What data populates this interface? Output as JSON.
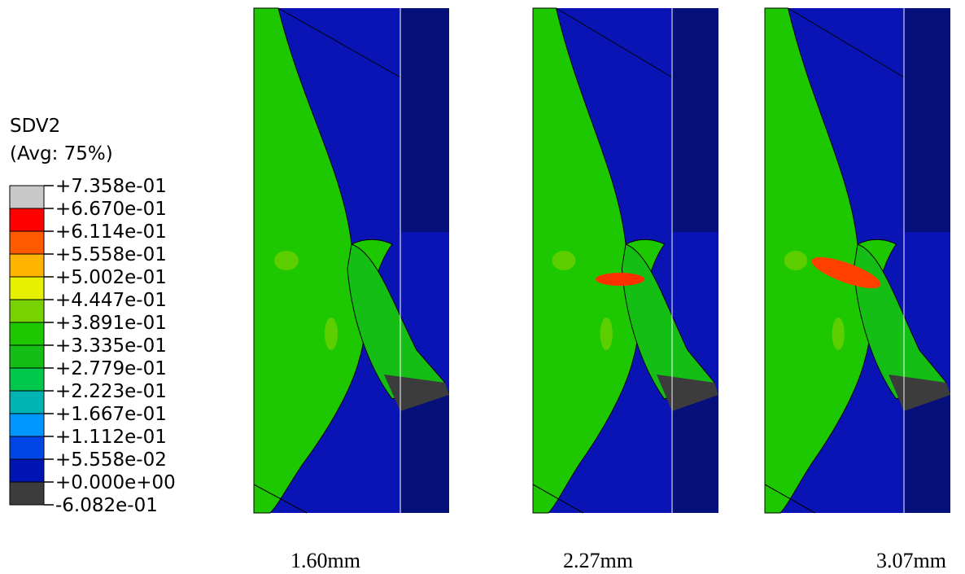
{
  "legend": {
    "title": "SDV2",
    "subtitle": "(Avg: 75%)",
    "labels": [
      "+7.358e-01",
      "+6.670e-01",
      "+6.114e-01",
      "+5.558e-01",
      "+5.002e-01",
      "+4.447e-01",
      "+3.891e-01",
      "+3.335e-01",
      "+2.779e-01",
      "+2.223e-01",
      "+1.667e-01",
      "+1.112e-01",
      "+5.558e-02",
      "+0.000e+00",
      "-6.082e-01"
    ],
    "colors": [
      "#c8c8c8",
      "#ff0000",
      "#ff5a00",
      "#ffb400",
      "#e6f000",
      "#78d200",
      "#1ec800",
      "#14be14",
      "#00c84b",
      "#00b4b4",
      "#0096ff",
      "#0046e6",
      "#0014b4",
      "#3c3c3c"
    ]
  },
  "panels": [
    {
      "caption": "1.60mm"
    },
    {
      "caption": "2.27mm"
    },
    {
      "caption": "3.07mm"
    }
  ]
}
